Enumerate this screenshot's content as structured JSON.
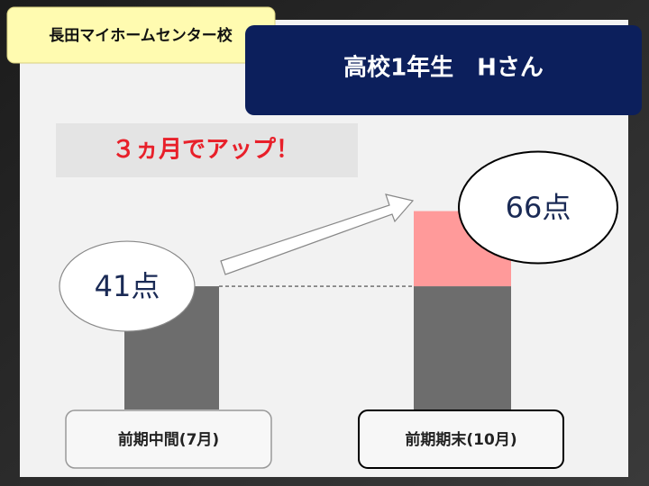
{
  "chart_data": {
    "type": "bar",
    "header_label": "長田マイホームセンター校",
    "title": "高校1年生　Hさん",
    "annotation": "３ヵ月でアップ！",
    "categories": [
      "前期中間(7月)",
      "前期期末(10月)"
    ],
    "values": [
      41,
      66
    ],
    "value_labels": [
      "41点",
      "66点"
    ],
    "color": "#6d6d6d",
    "increase_color": "#ff9a9a",
    "ylim": [
      0,
      100
    ]
  }
}
